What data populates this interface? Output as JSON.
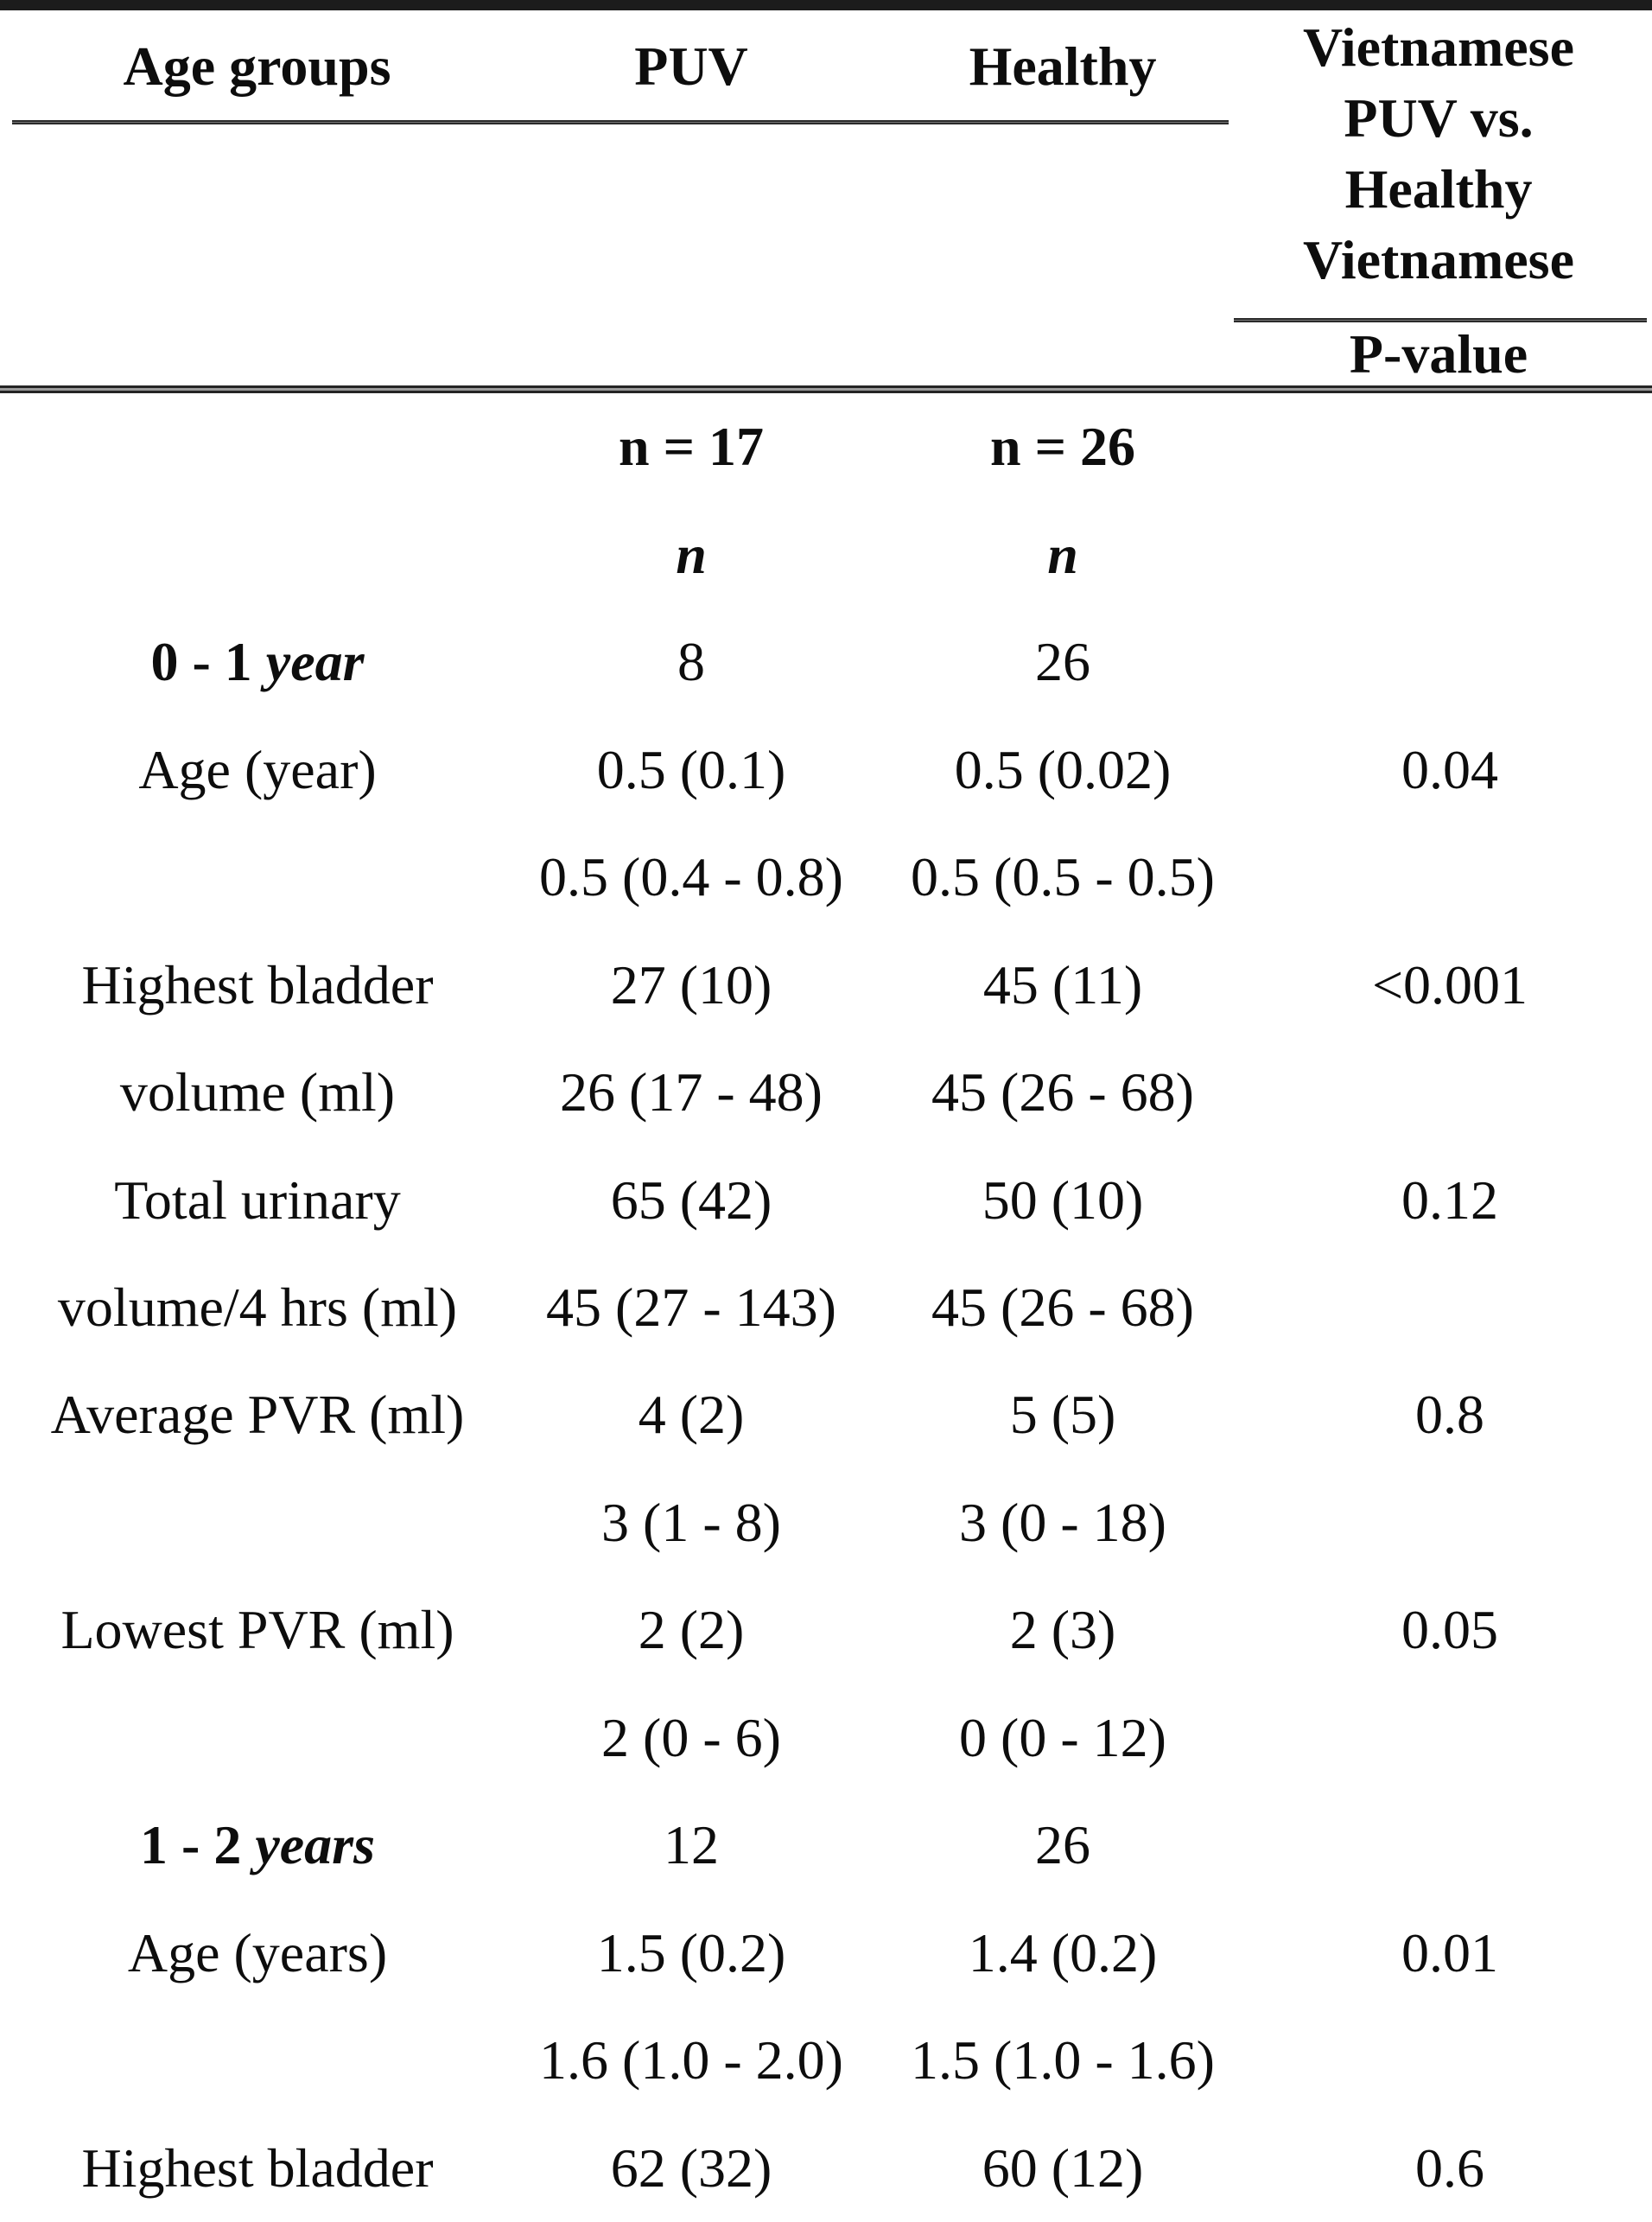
{
  "page": {
    "background": "#ffffff",
    "text_color": "#0d0d0d"
  },
  "table": {
    "header": {
      "col1": "Age groups",
      "col2": "PUV",
      "col3": "Healthy",
      "col4_lines": [
        "Vietnamese",
        "PUV vs.",
        "Healthy",
        "Vietnamese"
      ],
      "col4_sub": "P-value"
    },
    "rows": [
      {
        "label": "",
        "puv": "n = 17",
        "healthy": "n = 26",
        "p": "",
        "value_style": "bold"
      },
      {
        "label": "",
        "puv": "n",
        "healthy": "n",
        "p": "",
        "value_style": "bold-italic"
      },
      {
        "label_main": "0 - 1 ",
        "label_em": "year",
        "puv": "8",
        "healthy": "26",
        "p": ""
      },
      {
        "label": "Age (year)",
        "puv": "0.5 (0.1)",
        "healthy": "0.5 (0.02)",
        "p": "0.04"
      },
      {
        "label": "",
        "puv": "0.5 (0.4 - 0.8)",
        "healthy": "0.5 (0.5 - 0.5)",
        "p": ""
      },
      {
        "label": "Highest bladder",
        "puv": "27 (10)",
        "healthy": "45 (11)",
        "p": "<0.001"
      },
      {
        "label": "volume (ml)",
        "puv": "26 (17 - 48)",
        "healthy": "45 (26 - 68)",
        "p": ""
      },
      {
        "label": "Total urinary",
        "puv": "65 (42)",
        "healthy": "50 (10)",
        "p": "0.12"
      },
      {
        "label": "volume/4 hrs (ml)",
        "puv": "45 (27 - 143)",
        "healthy": "45 (26 - 68)",
        "p": ""
      },
      {
        "label": "Average PVR (ml)",
        "puv": "4 (2)",
        "healthy": "5 (5)",
        "p": "0.8"
      },
      {
        "label": "",
        "puv": "3 (1 - 8)",
        "healthy": "3 (0 - 18)",
        "p": ""
      },
      {
        "label": "Lowest PVR (ml)",
        "puv": "2 (2)",
        "healthy": "2 (3)",
        "p": "0.05"
      },
      {
        "label": "",
        "puv": "2 (0 - 6)",
        "healthy": "0 (0 - 12)",
        "p": ""
      },
      {
        "label_main": "1 - 2 ",
        "label_em": "years",
        "puv": "12",
        "healthy": "26",
        "p": ""
      },
      {
        "label": "Age (years)",
        "puv": "1.5 (0.2)",
        "healthy": "1.4 (0.2)",
        "p": "0.01"
      },
      {
        "label": "",
        "puv": "1.6 (1.0 - 2.0)",
        "healthy": "1.5 (1.0 - 1.6)",
        "p": ""
      },
      {
        "label": "Highest bladder",
        "puv": "62 (32)",
        "healthy": "60 (12)",
        "p": "0.6"
      }
    ]
  }
}
